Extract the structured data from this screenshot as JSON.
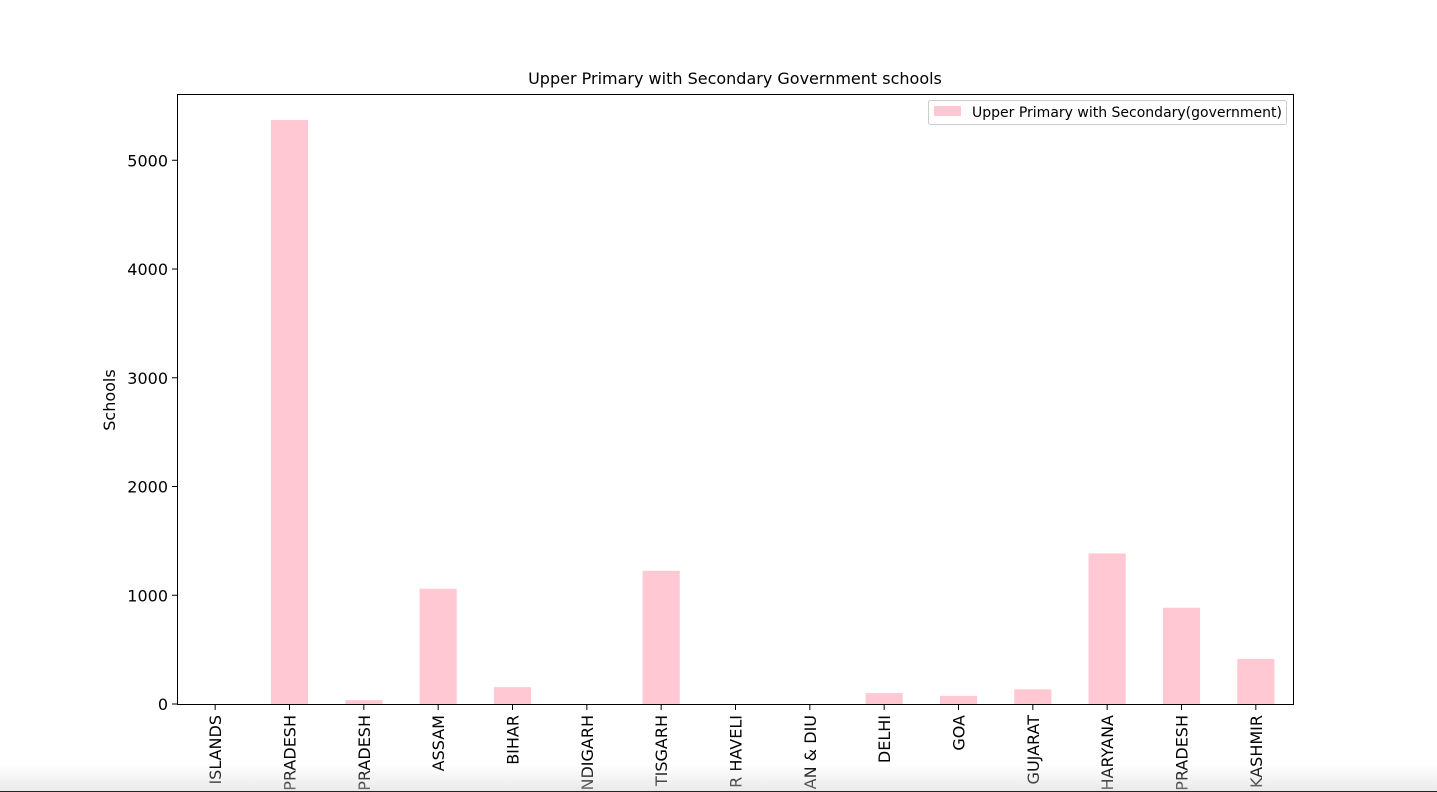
{
  "chart_data": {
    "type": "bar",
    "title": "Upper Primary with Secondary Government schools",
    "ylabel": "Schools",
    "xlabel": "",
    "ylim": [
      0,
      5600
    ],
    "yticks": [
      0,
      1000,
      2000,
      3000,
      4000,
      5000
    ],
    "categories": [
      "ISLANDS",
      "PRADESH",
      "PRADESH",
      "ASSAM",
      "BIHAR",
      "NDIGARH",
      "TISGARH",
      "R HAVELI",
      "AN & DIU",
      "DELHI",
      "GOA",
      "GUJARAT",
      "HARYANA",
      "PRADESH",
      "KASHMIR"
    ],
    "series": [
      {
        "name": "Upper Primary with Secondary(government)",
        "color": "#ffc8d3",
        "values": [
          0,
          5370,
          35,
          1060,
          155,
          0,
          1225,
          0,
          0,
          100,
          75,
          135,
          1385,
          885,
          415
        ]
      }
    ],
    "legend": "top-right",
    "grid": false
  }
}
